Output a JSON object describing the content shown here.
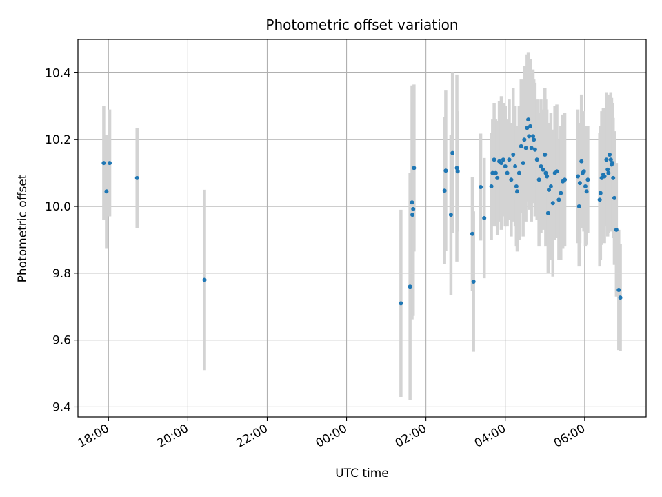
{
  "chart_data": {
    "type": "scatter",
    "title": "Photometric offset variation",
    "xlabel": "UTC time",
    "ylabel": "Photometric offset",
    "x_unit": "hours",
    "xlim": [
      17.23,
      31.55
    ],
    "ylim": [
      9.37,
      10.5
    ],
    "x_tick_values": [
      18,
      20,
      22,
      24,
      26,
      28,
      30
    ],
    "x_tick_labels": [
      "18:00",
      "20:00",
      "22:00",
      "00:00",
      "02:00",
      "04:00",
      "06:00"
    ],
    "y_tick_values": [
      9.4,
      9.6,
      9.8,
      10.0,
      10.2,
      10.4
    ],
    "y_tick_labels": [
      "9.4",
      "9.6",
      "9.8",
      "10.0",
      "10.2",
      "10.4"
    ],
    "grid": true,
    "colors": {
      "point": "#1f77b4",
      "errorbar": "#d3d3d3",
      "grid": "#b0b0b0"
    },
    "points": [
      [
        17.88,
        10.13,
        0.17
      ],
      [
        17.95,
        10.045,
        0.17
      ],
      [
        18.03,
        10.13,
        0.16
      ],
      [
        18.72,
        10.085,
        0.15
      ],
      [
        20.42,
        9.78,
        0.27
      ],
      [
        25.37,
        9.71,
        0.28
      ],
      [
        25.6,
        9.76,
        0.34
      ],
      [
        25.65,
        10.012,
        0.35
      ],
      [
        25.66,
        9.975,
        0.3
      ],
      [
        25.68,
        9.992,
        0.32
      ],
      [
        25.7,
        10.115,
        0.25
      ],
      [
        26.47,
        10.047,
        0.22
      ],
      [
        26.5,
        10.107,
        0.24
      ],
      [
        26.63,
        9.975,
        0.24
      ],
      [
        26.67,
        10.16,
        0.24
      ],
      [
        26.78,
        10.115,
        0.28
      ],
      [
        26.8,
        10.105,
        0.18
      ],
      [
        27.17,
        9.918,
        0.17
      ],
      [
        27.2,
        9.775,
        0.21
      ],
      [
        27.38,
        10.058,
        0.16
      ],
      [
        27.47,
        9.965,
        0.18
      ],
      [
        27.65,
        10.06,
        0.16
      ],
      [
        27.68,
        10.1,
        0.16
      ],
      [
        27.72,
        10.14,
        0.17
      ],
      [
        27.76,
        10.1,
        0.16
      ],
      [
        27.8,
        10.085,
        0.17
      ],
      [
        27.85,
        10.135,
        0.18
      ],
      [
        27.9,
        10.13,
        0.2
      ],
      [
        27.95,
        10.14,
        0.17
      ],
      [
        28.0,
        10.12,
        0.18
      ],
      [
        28.05,
        10.1,
        0.16
      ],
      [
        28.1,
        10.14,
        0.18
      ],
      [
        28.15,
        10.08,
        0.17
      ],
      [
        28.2,
        10.155,
        0.2
      ],
      [
        28.25,
        10.12,
        0.18
      ],
      [
        28.28,
        10.06,
        0.18
      ],
      [
        28.3,
        10.045,
        0.18
      ],
      [
        28.35,
        10.1,
        0.2
      ],
      [
        28.4,
        10.18,
        0.2
      ],
      [
        28.45,
        10.13,
        0.22
      ],
      [
        28.48,
        10.2,
        0.22
      ],
      [
        28.52,
        10.175,
        0.22
      ],
      [
        28.55,
        10.235,
        0.22
      ],
      [
        28.58,
        10.26,
        0.2
      ],
      [
        28.6,
        10.21,
        0.22
      ],
      [
        28.63,
        10.24,
        0.2
      ],
      [
        28.66,
        10.175,
        0.22
      ],
      [
        28.7,
        10.21,
        0.2
      ],
      [
        28.72,
        10.2,
        0.18
      ],
      [
        28.75,
        10.17,
        0.2
      ],
      [
        28.8,
        10.14,
        0.18
      ],
      [
        28.85,
        10.08,
        0.2
      ],
      [
        28.9,
        10.12,
        0.2
      ],
      [
        28.95,
        10.11,
        0.18
      ],
      [
        29.0,
        10.155,
        0.2
      ],
      [
        29.02,
        10.1,
        0.22
      ],
      [
        29.05,
        10.09,
        0.2
      ],
      [
        29.08,
        9.98,
        0.18
      ],
      [
        29.1,
        10.05,
        0.2
      ],
      [
        29.15,
        10.06,
        0.22
      ],
      [
        29.2,
        10.01,
        0.22
      ],
      [
        29.25,
        10.1,
        0.2
      ],
      [
        29.3,
        10.105,
        0.2
      ],
      [
        29.35,
        10.02,
        0.18
      ],
      [
        29.4,
        10.04,
        0.2
      ],
      [
        29.45,
        10.075,
        0.2
      ],
      [
        29.5,
        10.08,
        0.2
      ],
      [
        29.83,
        10.09,
        0.2
      ],
      [
        29.86,
        10.0,
        0.18
      ],
      [
        29.88,
        10.07,
        0.18
      ],
      [
        29.92,
        10.135,
        0.2
      ],
      [
        29.95,
        10.1,
        0.16
      ],
      [
        29.98,
        10.105,
        0.18
      ],
      [
        30.02,
        10.06,
        0.18
      ],
      [
        30.05,
        10.045,
        0.16
      ],
      [
        30.08,
        10.08,
        0.16
      ],
      [
        30.38,
        10.02,
        0.2
      ],
      [
        30.4,
        10.04,
        0.2
      ],
      [
        30.43,
        10.085,
        0.2
      ],
      [
        30.47,
        10.095,
        0.2
      ],
      [
        30.5,
        10.09,
        0.2
      ],
      [
        30.55,
        10.14,
        0.2
      ],
      [
        30.58,
        10.11,
        0.2
      ],
      [
        30.6,
        10.1,
        0.18
      ],
      [
        30.63,
        10.155,
        0.18
      ],
      [
        30.66,
        10.14,
        0.2
      ],
      [
        30.68,
        10.125,
        0.2
      ],
      [
        30.7,
        10.13,
        0.18
      ],
      [
        30.72,
        10.085,
        0.18
      ],
      [
        30.75,
        10.025,
        0.2
      ],
      [
        30.8,
        9.93,
        0.2
      ],
      [
        30.86,
        9.75,
        0.18
      ],
      [
        30.9,
        9.727,
        0.16
      ]
    ]
  }
}
